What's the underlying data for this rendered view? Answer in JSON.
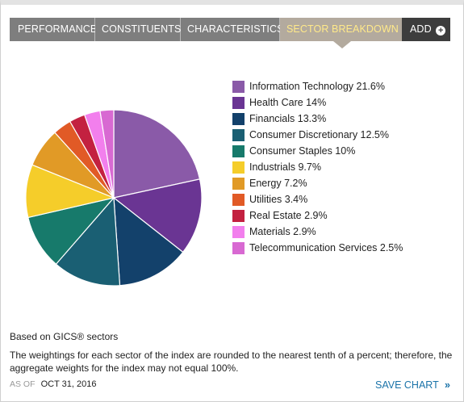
{
  "tabs": [
    {
      "label": "PERFORMANCE",
      "name": "tab-performance"
    },
    {
      "label": "CONSTITUENTS",
      "name": "tab-constituents"
    },
    {
      "label": "CHARACTERISTICS",
      "name": "tab-characteristics"
    }
  ],
  "active_tab": {
    "label": "SECTOR BREAKDOWN"
  },
  "add_tab": {
    "label": "ADD",
    "icon": "plus-circle-icon"
  },
  "chart_data": {
    "type": "pie",
    "categories": [
      "Information Technology",
      "Health Care",
      "Financials",
      "Consumer Discretionary",
      "Consumer Staples",
      "Industrials",
      "Energy",
      "Utilities",
      "Real Estate",
      "Materials",
      "Telecommunication Services"
    ],
    "values": [
      21.6,
      14,
      13.3,
      12.5,
      10,
      9.7,
      7.2,
      3.4,
      2.9,
      2.9,
      2.5
    ],
    "value_labels": [
      "21.6%",
      "14%",
      "13.3%",
      "12.5%",
      "10%",
      "9.7%",
      "7.2%",
      "3.4%",
      "2.9%",
      "2.9%",
      "2.5%"
    ],
    "colors": [
      "#8a5aa8",
      "#6a3593",
      "#13416b",
      "#1a5f73",
      "#177a6b",
      "#f5cd2a",
      "#e19a26",
      "#e15a26",
      "#c32140",
      "#f27fed",
      "#d869d2"
    ],
    "legend_position": "right"
  },
  "notes": {
    "title": "Based on GICS® sectors",
    "body": "The weightings for each sector of the index are rounded to the nearest tenth of a percent; therefore, the aggregate weights for the index may not equal 100%."
  },
  "as_of": {
    "label": "AS OF",
    "date": "OCT 31, 2016"
  },
  "save_chart": {
    "label": "SAVE CHART",
    "icon": "double-chevron-right-icon"
  }
}
